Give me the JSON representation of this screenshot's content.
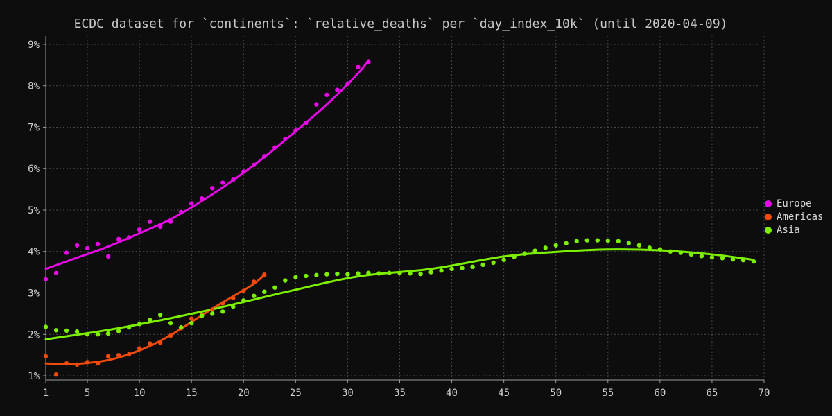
{
  "chart_data": {
    "type": "scatter",
    "title": "ECDC dataset for `continents`: `relative_deaths` per `day_index_10k` (until 2020-04-09)",
    "xlabel": "",
    "ylabel": "",
    "xlim": [
      1,
      70
    ],
    "ylim": [
      0.9,
      9.2
    ],
    "x_ticks": [
      1,
      5,
      10,
      15,
      20,
      25,
      30,
      35,
      40,
      45,
      50,
      55,
      60,
      65,
      70
    ],
    "y_ticks": [
      1,
      2,
      3,
      4,
      5,
      6,
      7,
      8,
      9
    ],
    "y_tick_suffix": "%",
    "grid": true,
    "legend_position": "right",
    "series": [
      {
        "name": "Europe",
        "color": "#e60ae6",
        "x": [
          1,
          2,
          3,
          4,
          5,
          6,
          7,
          8,
          9,
          10,
          11,
          12,
          13,
          14,
          15,
          16,
          17,
          18,
          19,
          20,
          21,
          22,
          23,
          24,
          25,
          26,
          27,
          28,
          29,
          30,
          31,
          32
        ],
        "y": [
          3.33,
          3.48,
          3.97,
          4.15,
          4.08,
          4.18,
          3.88,
          4.3,
          4.34,
          4.53,
          4.72,
          4.6,
          4.72,
          4.95,
          5.16,
          5.28,
          5.53,
          5.66,
          5.73,
          5.93,
          6.09,
          6.3,
          6.51,
          6.72,
          6.92,
          7.1,
          7.55,
          7.78,
          7.9,
          8.05,
          8.45,
          8.57
        ],
        "trend": [
          [
            1,
            3.58
          ],
          [
            4,
            3.85
          ],
          [
            7,
            4.12
          ],
          [
            10,
            4.44
          ],
          [
            13,
            4.78
          ],
          [
            16,
            5.22
          ],
          [
            19,
            5.72
          ],
          [
            22,
            6.28
          ],
          [
            25,
            6.9
          ],
          [
            28,
            7.55
          ],
          [
            31,
            8.3
          ],
          [
            32,
            8.62
          ]
        ]
      },
      {
        "name": "Americas",
        "color": "#f04a0c",
        "x": [
          1,
          2,
          3,
          4,
          5,
          6,
          7,
          8,
          9,
          10,
          11,
          12,
          13,
          14,
          15,
          16,
          17,
          18,
          19,
          20,
          21,
          22
        ],
        "y": [
          1.47,
          1.03,
          1.3,
          1.27,
          1.33,
          1.3,
          1.47,
          1.5,
          1.52,
          1.66,
          1.78,
          1.8,
          1.97,
          2.15,
          2.38,
          2.47,
          2.6,
          2.75,
          2.88,
          3.05,
          3.27,
          3.44
        ],
        "trend": [
          [
            1,
            1.3
          ],
          [
            3,
            1.28
          ],
          [
            5,
            1.31
          ],
          [
            7,
            1.38
          ],
          [
            9,
            1.52
          ],
          [
            11,
            1.72
          ],
          [
            13,
            1.98
          ],
          [
            15,
            2.3
          ],
          [
            17,
            2.62
          ],
          [
            19,
            2.92
          ],
          [
            21,
            3.22
          ],
          [
            22,
            3.44
          ]
        ]
      },
      {
        "name": "Asia",
        "color": "#7cf000",
        "x": [
          1,
          2,
          3,
          4,
          5,
          6,
          7,
          8,
          9,
          10,
          11,
          12,
          13,
          14,
          15,
          16,
          17,
          18,
          19,
          20,
          21,
          22,
          23,
          24,
          25,
          26,
          27,
          28,
          29,
          30,
          31,
          32,
          33,
          34,
          35,
          36,
          37,
          38,
          39,
          40,
          41,
          42,
          43,
          44,
          45,
          46,
          47,
          48,
          49,
          50,
          51,
          52,
          53,
          54,
          55,
          56,
          57,
          58,
          59,
          60,
          61,
          62,
          63,
          64,
          65,
          66,
          67,
          68,
          69
        ],
        "y": [
          2.18,
          2.1,
          2.09,
          2.07,
          2.0,
          2.0,
          2.02,
          2.08,
          2.17,
          2.25,
          2.35,
          2.47,
          2.27,
          2.17,
          2.27,
          2.45,
          2.5,
          2.55,
          2.67,
          2.82,
          2.93,
          3.03,
          3.13,
          3.3,
          3.38,
          3.41,
          3.43,
          3.45,
          3.46,
          3.45,
          3.47,
          3.48,
          3.47,
          3.48,
          3.48,
          3.47,
          3.46,
          3.5,
          3.54,
          3.58,
          3.6,
          3.63,
          3.68,
          3.73,
          3.8,
          3.87,
          3.95,
          4.02,
          4.09,
          4.15,
          4.2,
          4.25,
          4.27,
          4.27,
          4.26,
          4.25,
          4.2,
          4.15,
          4.09,
          4.05,
          4.0,
          3.97,
          3.93,
          3.89,
          3.86,
          3.84,
          3.81,
          3.79,
          3.76
        ],
        "trend": [
          [
            1,
            1.88
          ],
          [
            8,
            2.15
          ],
          [
            16,
            2.55
          ],
          [
            24,
            3.02
          ],
          [
            31,
            3.4
          ],
          [
            38,
            3.58
          ],
          [
            45,
            3.88
          ],
          [
            50,
            3.99
          ],
          [
            55,
            4.05
          ],
          [
            60,
            4.03
          ],
          [
            65,
            3.93
          ],
          [
            69,
            3.8
          ]
        ]
      }
    ]
  }
}
